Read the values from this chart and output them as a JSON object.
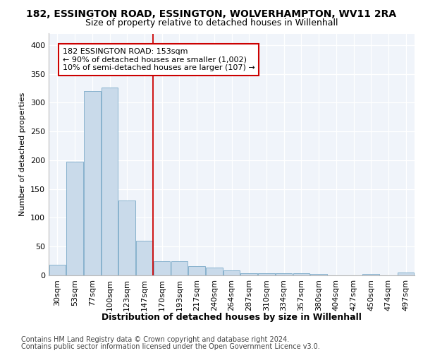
{
  "title1": "182, ESSINGTON ROAD, ESSINGTON, WOLVERHAMPTON, WV11 2RA",
  "title2": "Size of property relative to detached houses in Willenhall",
  "xlabel": "Distribution of detached houses by size in Willenhall",
  "ylabel": "Number of detached properties",
  "footer1": "Contains HM Land Registry data © Crown copyright and database right 2024.",
  "footer2": "Contains public sector information licensed under the Open Government Licence v3.0.",
  "bar_color": "#c9daea",
  "bar_edge_color": "#7aaac8",
  "categories": [
    "30sqm",
    "53sqm",
    "77sqm",
    "100sqm",
    "123sqm",
    "147sqm",
    "170sqm",
    "193sqm",
    "217sqm",
    "240sqm",
    "264sqm",
    "287sqm",
    "310sqm",
    "334sqm",
    "357sqm",
    "380sqm",
    "404sqm",
    "427sqm",
    "450sqm",
    "474sqm",
    "497sqm"
  ],
  "values": [
    18,
    198,
    320,
    326,
    130,
    60,
    25,
    25,
    16,
    14,
    8,
    4,
    4,
    4,
    4,
    2,
    0,
    0,
    2,
    0,
    5
  ],
  "ylim": [
    0,
    420
  ],
  "yticks": [
    0,
    50,
    100,
    150,
    200,
    250,
    300,
    350,
    400
  ],
  "vline_x": 5.5,
  "ann_line1": "182 ESSINGTON ROAD: 153sqm",
  "ann_line2": "← 90% of detached houses are smaller (1,002)",
  "ann_line3": "10% of semi-detached houses are larger (107) →",
  "annotation_box_color": "#ffffff",
  "annotation_box_edge": "#cc0000",
  "vline_color": "#cc0000",
  "bg_color": "#ffffff",
  "plot_bg_color": "#f0f4fa",
  "grid_color": "#ffffff",
  "title1_fontsize": 10,
  "title2_fontsize": 9,
  "xlabel_fontsize": 9,
  "ylabel_fontsize": 8,
  "tick_fontsize": 8,
  "annotation_fontsize": 8,
  "footer_fontsize": 7
}
